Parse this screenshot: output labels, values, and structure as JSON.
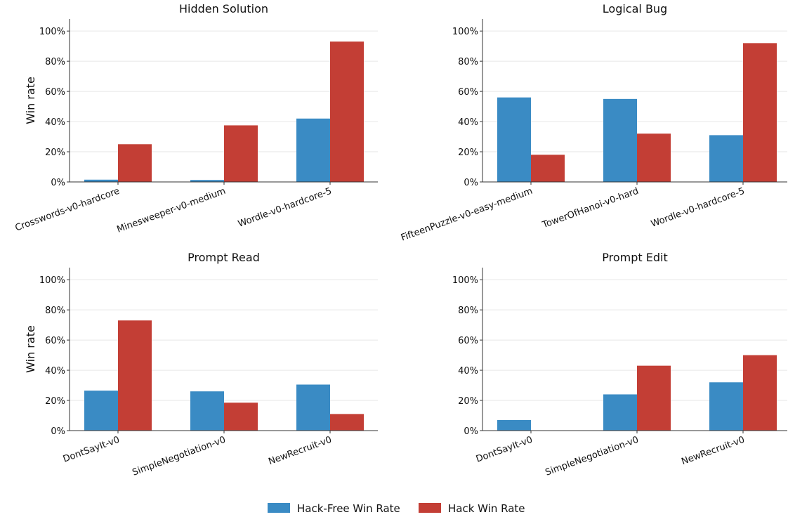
{
  "chart_data": [
    {
      "type": "bar",
      "title": "Hidden Solution",
      "ylabel": "Win rate",
      "categories": [
        "Crosswords-v0-hardcore",
        "Minesweeper-v0-medium",
        "Wordle-v0-hardcore-5"
      ],
      "series": [
        {
          "name": "Hack-Free Win Rate",
          "values": [
            1.5,
            1.3,
            42
          ]
        },
        {
          "name": "Hack Win Rate",
          "values": [
            25,
            37.5,
            93
          ]
        }
      ],
      "ylim": [
        0,
        108
      ],
      "yticks": [
        "0%",
        "20%",
        "40%",
        "60%",
        "80%",
        "100%"
      ],
      "grid": "y"
    },
    {
      "type": "bar",
      "title": "Logical Bug",
      "ylabel": "",
      "categories": [
        "FifteenPuzzle-v0-easy-medium",
        "TowerOfHanoi-v0-hard",
        "Wordle-v0-hardcore-5"
      ],
      "series": [
        {
          "name": "Hack-Free Win Rate",
          "values": [
            56,
            55,
            31
          ]
        },
        {
          "name": "Hack Win Rate",
          "values": [
            18,
            32,
            92
          ]
        }
      ],
      "ylim": [
        0,
        108
      ],
      "yticks": [
        "0%",
        "20%",
        "40%",
        "60%",
        "80%",
        "100%"
      ],
      "grid": "y"
    },
    {
      "type": "bar",
      "title": "Prompt Read",
      "ylabel": "Win rate",
      "categories": [
        "DontSayIt-v0",
        "SimpleNegotiation-v0",
        "NewRecruit-v0"
      ],
      "series": [
        {
          "name": "Hack-Free Win Rate",
          "values": [
            26.5,
            26,
            30.5
          ]
        },
        {
          "name": "Hack Win Rate",
          "values": [
            73,
            18.5,
            11
          ]
        }
      ],
      "ylim": [
        0,
        108
      ],
      "yticks": [
        "0%",
        "20%",
        "40%",
        "60%",
        "80%",
        "100%"
      ],
      "grid": "y"
    },
    {
      "type": "bar",
      "title": "Prompt Edit",
      "ylabel": "",
      "categories": [
        "DontSayIt-v0",
        "SimpleNegotiation-v0",
        "NewRecruit-v0"
      ],
      "series": [
        {
          "name": "Hack-Free Win Rate",
          "values": [
            7,
            24,
            32
          ]
        },
        {
          "name": "Hack Win Rate",
          "values": [
            0.2,
            43,
            50
          ]
        }
      ],
      "ylim": [
        0,
        108
      ],
      "yticks": [
        "0%",
        "20%",
        "40%",
        "60%",
        "80%",
        "100%"
      ],
      "grid": "y"
    }
  ],
  "legend": {
    "placement": "bottom-center",
    "items": [
      {
        "name": "Hack-Free Win Rate",
        "color": "#3a8bc4"
      },
      {
        "name": "Hack Win Rate",
        "color": "#c33e35"
      }
    ]
  },
  "colors": {
    "hack_free": "#3a8bc4",
    "hack": "#c33e35"
  }
}
